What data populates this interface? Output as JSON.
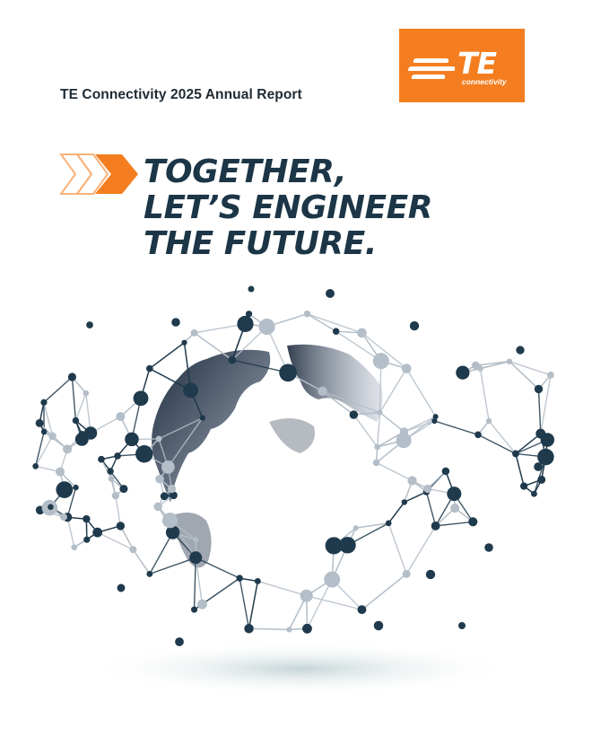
{
  "header": {
    "report_title": "TE Connectivity 2025 Annual Report"
  },
  "logo": {
    "wordmark": "TE",
    "tagline": "connectivity",
    "color": "#f47e1f"
  },
  "headline": {
    "line1": "TOGETHER,",
    "line2": "LET’S ENGINEER",
    "line3": "THE FUTURE."
  },
  "colors": {
    "navy": "#1c3647",
    "orange": "#f47e1f",
    "light_orange": "#f9b27a",
    "node_dark": "#1f3a4c",
    "node_light": "#b3bec8"
  },
  "icons": [
    "chevron-arrows-icon",
    "globe-network-graphic"
  ]
}
